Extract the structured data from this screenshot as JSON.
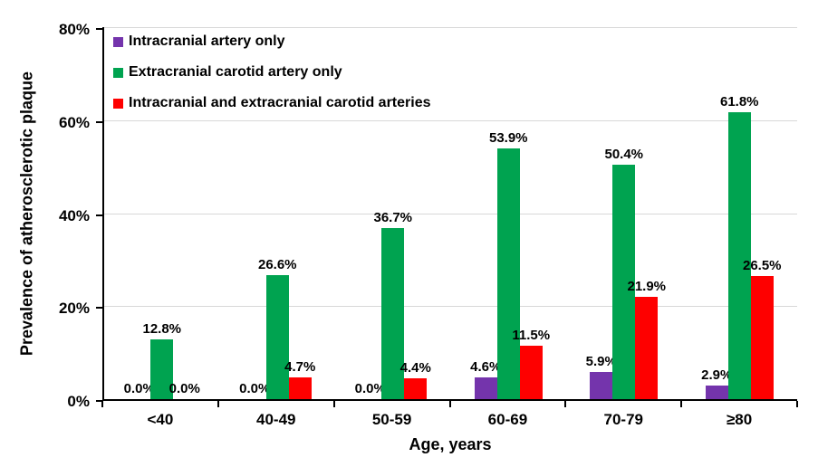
{
  "chart_data": {
    "type": "bar",
    "title": "",
    "xlabel": "Age, years",
    "ylabel": "Prevalence of atherosclerotic plaque",
    "ylim": [
      0,
      80
    ],
    "yticks": [
      0,
      20,
      40,
      60,
      80
    ],
    "ytick_suffix": "%",
    "grid": true,
    "legend_position": "top-left-inside",
    "data_labels": true,
    "data_label_format": "one-decimal-percent",
    "categories": [
      "<40",
      "40-49",
      "50-59",
      "60-69",
      "70-79",
      "≥80"
    ],
    "series": [
      {
        "name": "Intracranial artery only",
        "color": "#7434AC",
        "values": [
          0.0,
          0.0,
          0.0,
          4.6,
          5.9,
          2.9
        ]
      },
      {
        "name": "Extracranial carotid artery only",
        "color": "#00A350",
        "values": [
          12.8,
          26.6,
          36.7,
          53.9,
          50.4,
          61.8
        ]
      },
      {
        "name": "Intracranial and extracranial carotid arteries",
        "color": "#FE0000",
        "values": [
          0.0,
          4.7,
          4.4,
          11.5,
          21.9,
          26.5
        ]
      }
    ]
  },
  "colors": {
    "axis": "#000000",
    "gridline": "#D8D8D8",
    "background": "#FFFFFF",
    "text": "#000000"
  }
}
